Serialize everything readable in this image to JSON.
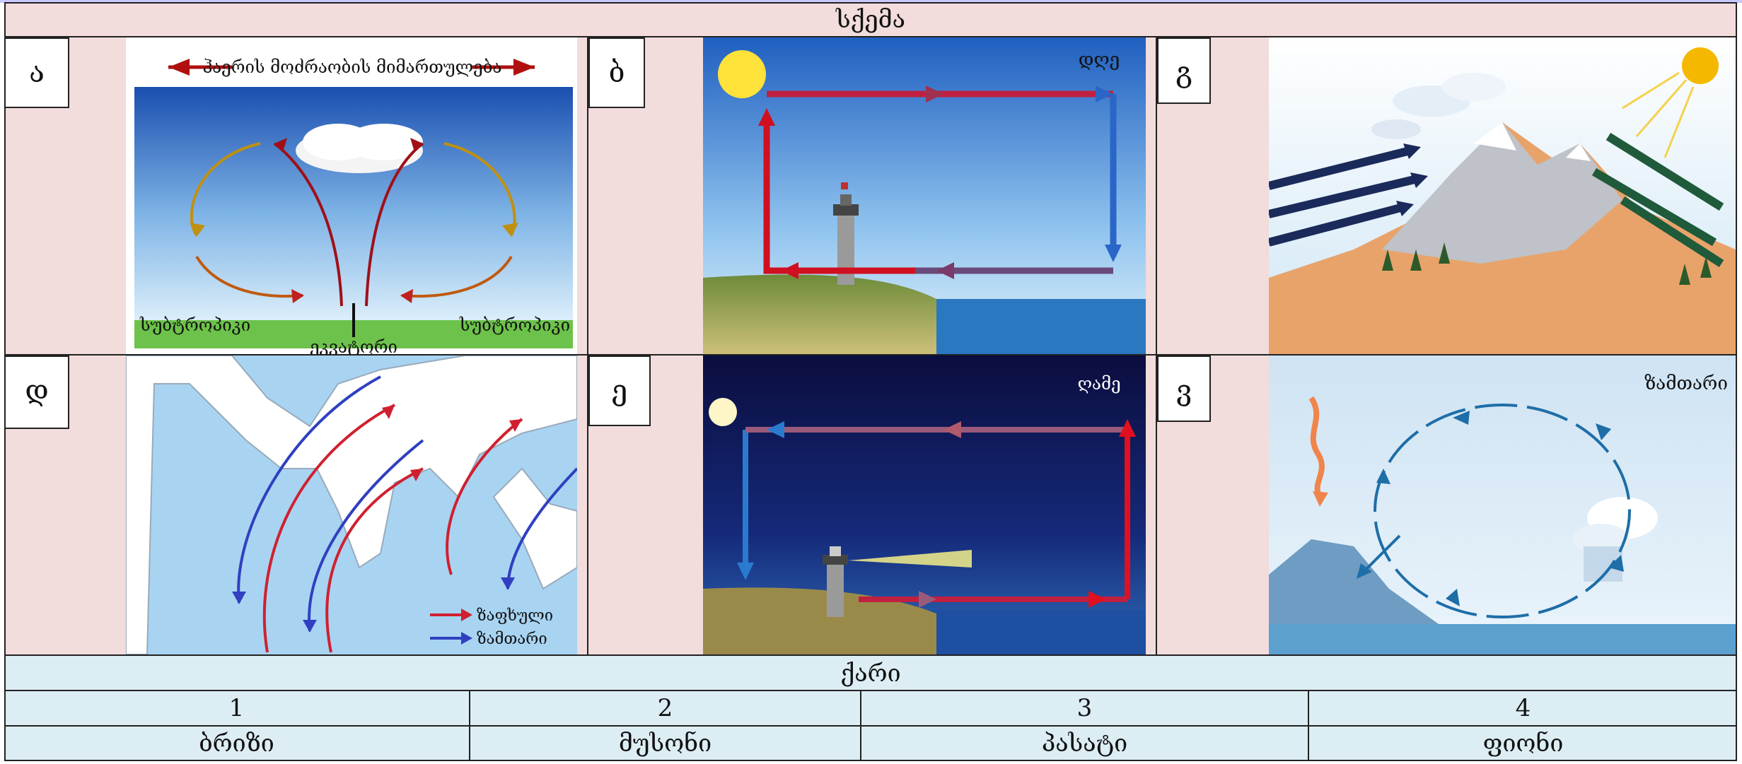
{
  "header": {
    "title": "სქემა"
  },
  "diagrams": [
    {
      "letter": "ა",
      "top_label": "ჰაერის მოძრაობის მიმართულება",
      "left_label": "სუბტროპიკი",
      "right_label": "სუბტროპიკი",
      "bottom_label": "ეკვატორი"
    },
    {
      "letter": "ბ",
      "label": "დღე"
    },
    {
      "letter": "გ"
    },
    {
      "letter": "დ",
      "legend_red": "ზაფხული",
      "legend_blue": "ზამთარი"
    },
    {
      "letter": "ე",
      "label": "ღამე"
    },
    {
      "letter": "ვ",
      "label": "ზამთარი"
    }
  ],
  "wind": {
    "title": "ქარი",
    "numbers": [
      "1",
      "2",
      "3",
      "4"
    ],
    "names": [
      "ბრიზი",
      "მუსონი",
      "პასატი",
      "ფიონი"
    ]
  },
  "colors": {
    "pink_bg": "#f2dcdc",
    "blue_bg": "#dcedf3",
    "red_arrow": "#d01020",
    "blue_arrow": "#1a6bc9"
  }
}
